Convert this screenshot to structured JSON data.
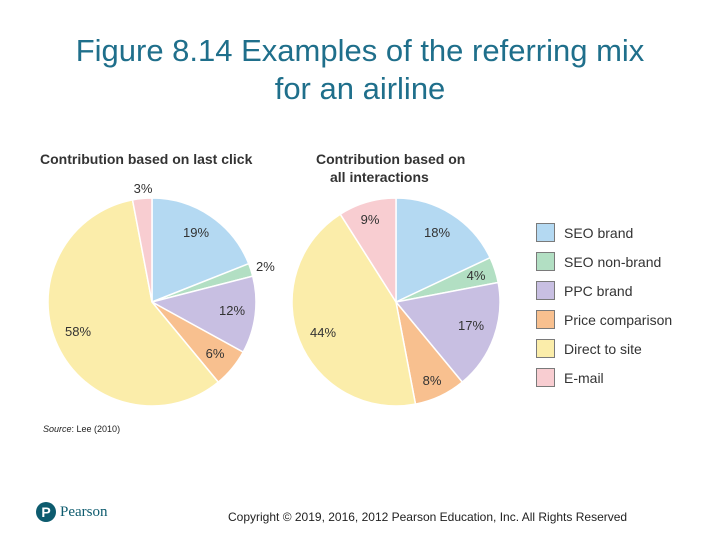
{
  "title_line1": "Figure 8.14 Examples of the referring mix",
  "title_line2": "for an airline",
  "source_label": "Source",
  "source_text": ": Lee (2010)",
  "brand": "Pearson",
  "copyright": "Copyright © 2019, 2016, 2012 Pearson Education, Inc. All Rights Reserved",
  "chart_data": [
    {
      "type": "pie",
      "title": "Contribution based on last click",
      "categories": [
        "SEO brand",
        "SEO non-brand",
        "PPC brand",
        "Price comparison",
        "Direct to site",
        "E-mail"
      ],
      "values": [
        19,
        2,
        12,
        6,
        58,
        3
      ],
      "labels": [
        "19%",
        "2%",
        "12%",
        "6%",
        "58%",
        "3%"
      ],
      "colors": [
        "#b4d9f2",
        "#b2dfc3",
        "#c8bfe2",
        "#f8c08f",
        "#fbedaa",
        "#f8cdd1"
      ]
    },
    {
      "type": "pie",
      "title_line1": "Contribution based on",
      "title_line2": "all interactions",
      "categories": [
        "SEO brand",
        "SEO non-brand",
        "PPC brand",
        "Price comparison",
        "Direct to site",
        "E-mail"
      ],
      "values": [
        18,
        4,
        17,
        8,
        44,
        9
      ],
      "labels": [
        "18%",
        "4%",
        "17%",
        "8%",
        "44%",
        "9%"
      ],
      "colors": [
        "#b4d9f2",
        "#b2dfc3",
        "#c8bfe2",
        "#f8c08f",
        "#fbedaa",
        "#f8cdd1"
      ]
    }
  ],
  "legend": {
    "placement": "right",
    "items": [
      {
        "label": "SEO brand",
        "color": "#b4d9f2"
      },
      {
        "label": "SEO non-brand",
        "color": "#b2dfc3"
      },
      {
        "label": "PPC brand",
        "color": "#c8bfe2"
      },
      {
        "label": "Price comparison",
        "color": "#f8c08f"
      },
      {
        "label": "Direct to site",
        "color": "#fbedaa"
      },
      {
        "label": "E-mail",
        "color": "#f8cdd1"
      }
    ]
  }
}
